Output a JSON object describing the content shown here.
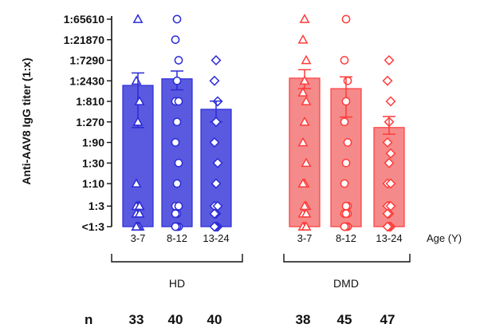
{
  "chart_data": {
    "type": "bar",
    "ylabel": "Anti-AAV8 IgG titer (1:x)",
    "xlabel": "Age (Y)",
    "yscale": "log3",
    "y_ticks": [
      {
        "value": 1,
        "label": "<1:3"
      },
      {
        "value": 3,
        "label": "1:3"
      },
      {
        "value": 10,
        "label": "1:10"
      },
      {
        "value": 30,
        "label": "1:30"
      },
      {
        "value": 90,
        "label": "1:90"
      },
      {
        "value": 270,
        "label": "1:270"
      },
      {
        "value": 810,
        "label": "1:810"
      },
      {
        "value": 2430,
        "label": "1:2430"
      },
      {
        "value": 7290,
        "label": "1:7290"
      },
      {
        "value": 21870,
        "label": "1:21870"
      },
      {
        "value": 65610,
        "label": "1:65610"
      }
    ],
    "groups": [
      {
        "label": "HD",
        "color": "#2a2ad8",
        "fill": "#5a5ae0"
      },
      {
        "label": "DMD",
        "color": "#ff3b3b",
        "fill": "#f58a8a"
      }
    ],
    "n_label": "n",
    "bars": [
      {
        "group": "HD",
        "category": "3-7",
        "mean": 1900,
        "sem_low": 200,
        "sem_high": 3700,
        "n": "33",
        "marker": "triangle",
        "points": [
          65610,
          2430,
          810,
          270,
          10,
          3,
          3,
          3,
          3,
          2,
          2,
          2,
          1,
          1,
          1,
          1,
          1
        ]
      },
      {
        "group": "HD",
        "category": "8-12",
        "mean": 2700,
        "sem_low": 1500,
        "sem_high": 4100,
        "n": "40",
        "marker": "circle",
        "points": [
          65610,
          21870,
          7290,
          2430,
          810,
          810,
          270,
          90,
          30,
          10,
          3,
          3,
          2,
          2,
          1,
          1,
          1
        ]
      },
      {
        "group": "HD",
        "category": "13-24",
        "mean": 530,
        "sem_low": 270,
        "sem_high": 820,
        "n": "40",
        "marker": "diamond",
        "points": [
          7290,
          2430,
          810,
          270,
          90,
          30,
          10,
          3,
          3,
          2,
          2,
          1,
          1,
          1
        ]
      },
      {
        "group": "DMD",
        "category": "3-7",
        "mean": 2800,
        "sem_low": 1600,
        "sem_high": 4400,
        "n": "38",
        "marker": "triangle",
        "points": [
          65610,
          21870,
          7290,
          2430,
          1300,
          810,
          270,
          90,
          30,
          10,
          10,
          3,
          3,
          2,
          2,
          1,
          1,
          1
        ]
      },
      {
        "group": "DMD",
        "category": "8-12",
        "mean": 1600,
        "sem_low": 350,
        "sem_high": 3000,
        "n": "45",
        "marker": "circle",
        "points": [
          65610,
          7290,
          2430,
          810,
          270,
          90,
          30,
          10,
          3,
          3,
          2,
          2,
          2,
          1,
          1,
          1,
          1
        ]
      },
      {
        "group": "DMD",
        "category": "13-24",
        "mean": 200,
        "sem_low": 140,
        "sem_high": 360,
        "n": "47",
        "marker": "diamond",
        "points": [
          7290,
          2430,
          810,
          270,
          90,
          50,
          30,
          10,
          10,
          3,
          3,
          3,
          2,
          2,
          1,
          1,
          1
        ]
      }
    ]
  }
}
